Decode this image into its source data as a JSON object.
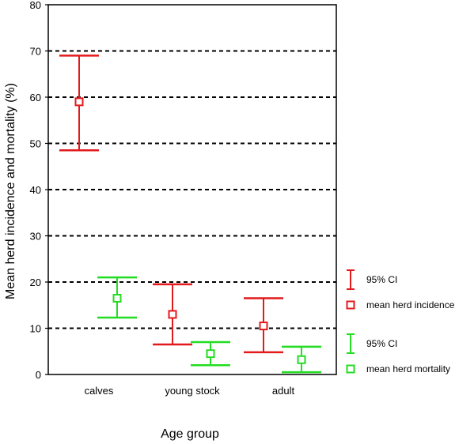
{
  "chart_data": {
    "type": "errorbar",
    "xlabel": "Age group",
    "ylabel": "Mean herd incidence and mortality (%)",
    "ylim": [
      0,
      80
    ],
    "yticks": [
      0,
      10,
      20,
      30,
      40,
      50,
      60,
      70,
      80
    ],
    "grid": "dashed horizontal lines at 10-unit intervals",
    "legend_position": "right",
    "categories": [
      "calves",
      "young stock",
      "adult"
    ],
    "series": [
      {
        "name": "mean herd incidence",
        "ci_label": "95% CI",
        "color": "#e31a1c",
        "mean": [
          59,
          13,
          10.5
        ],
        "ci_low": [
          48.5,
          6.5,
          4.8
        ],
        "ci_high": [
          69,
          19.5,
          16.5
        ]
      },
      {
        "name": "mean herd mortality",
        "ci_label": "95% CI",
        "color": "#22dd22",
        "mean": [
          16.5,
          4.5,
          3.2
        ],
        "ci_low": [
          12.3,
          2,
          0.5
        ],
        "ci_high": [
          21,
          7,
          6
        ]
      }
    ]
  }
}
